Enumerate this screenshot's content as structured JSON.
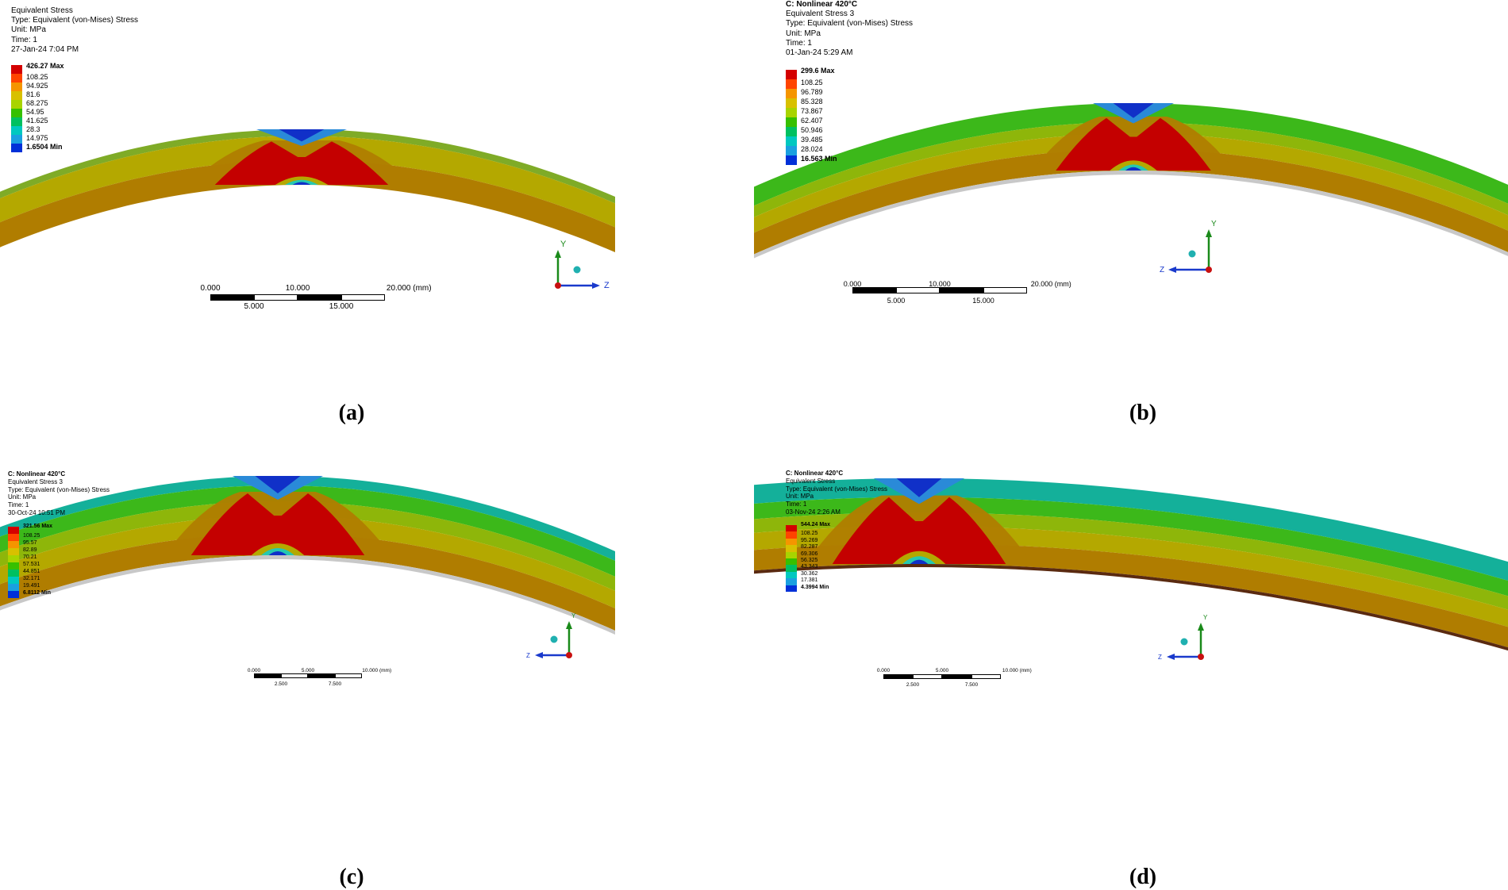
{
  "panels": [
    {
      "id": "a",
      "caption": "(a)",
      "info_lines": [
        {
          "text": "Equivalent Stress",
          "bold": false
        },
        {
          "text": "Type: Equivalent (von-Mises) Stress",
          "bold": false
        },
        {
          "text": "Unit: MPa",
          "bold": false
        },
        {
          "text": "Time: 1",
          "bold": false
        },
        {
          "text": "27-Jan-24 7:04 PM",
          "bold": false
        }
      ],
      "legend": [
        "426.27 Max",
        "108.25",
        "94.925",
        "81.6",
        "68.275",
        "54.95",
        "41.625",
        "28.3",
        "14.975",
        "1.6504 Min"
      ],
      "scale_top": [
        "0.000",
        "10.000",
        "20.000 (mm)"
      ],
      "scale_bottom": [
        "5.000",
        "15.000"
      ],
      "axes": {
        "vertical": "Y",
        "horizontal": "Z"
      }
    },
    {
      "id": "b",
      "caption": "(b)",
      "info_lines": [
        {
          "text": "C: Nonlinear 420°C",
          "bold": true
        },
        {
          "text": "Equivalent Stress 3",
          "bold": false
        },
        {
          "text": "Type: Equivalent (von-Mises) Stress",
          "bold": false
        },
        {
          "text": "Unit: MPa",
          "bold": false
        },
        {
          "text": "Time: 1",
          "bold": false
        },
        {
          "text": "01-Jan-24 5:29 AM",
          "bold": false
        }
      ],
      "legend": [
        "299.6 Max",
        "108.25",
        "96.789",
        "85.328",
        "73.867",
        "62.407",
        "50.946",
        "39.485",
        "28.024",
        "16.563 Min"
      ],
      "scale_top": [
        "0.000",
        "10.000",
        "20.000 (mm)"
      ],
      "scale_bottom": [
        "5.000",
        "15.000"
      ],
      "axes": {
        "vertical": "Y",
        "horizontal": "Z"
      }
    },
    {
      "id": "c",
      "caption": "(c)",
      "info_lines": [
        {
          "text": "C: Nonlinear 420°C",
          "bold": true
        },
        {
          "text": "Equivalent Stress 3",
          "bold": false
        },
        {
          "text": "Type: Equivalent (von-Mises) Stress",
          "bold": false
        },
        {
          "text": "Unit: MPa",
          "bold": false
        },
        {
          "text": "Time: 1",
          "bold": false
        },
        {
          "text": "30-Oct-24 10:51 PM",
          "bold": false
        }
      ],
      "legend": [
        "321.56 Max",
        "108.25",
        "95.57",
        "82.89",
        "70.21",
        "57.531",
        "44.851",
        "32.171",
        "19.491",
        "6.8112 Min"
      ],
      "scale_top": [
        "0.000",
        "5.000",
        "10.000 (mm)"
      ],
      "scale_bottom": [
        "2.500",
        "7.500"
      ],
      "axes": {
        "vertical": "Y",
        "horizontal": "Z"
      }
    },
    {
      "id": "d",
      "caption": "(d)",
      "info_lines": [
        {
          "text": "C: Nonlinear 420°C",
          "bold": true
        },
        {
          "text": "Equivalent Stress",
          "bold": false
        },
        {
          "text": "Type: Equivalent (von-Mises) Stress",
          "bold": false
        },
        {
          "text": "Unit: MPa",
          "bold": false
        },
        {
          "text": "Time: 1",
          "bold": false
        },
        {
          "text": "03-Nov-24 2:26 AM",
          "bold": false
        }
      ],
      "legend": [
        "544.24 Max",
        "108.25",
        "95.269",
        "82.287",
        "69.306",
        "56.325",
        "43.343",
        "30.362",
        "17.381",
        "4.3994 Min"
      ],
      "scale_top": [
        "0.000",
        "5.000",
        "10.000 (mm)"
      ],
      "scale_bottom": [
        "2.500",
        "7.500"
      ],
      "axes": {
        "vertical": "Y",
        "horizontal": "Z"
      }
    }
  ],
  "colors": {
    "legend_scale": [
      "#d40000",
      "#ff4400",
      "#f59500",
      "#d8c000",
      "#a8d400",
      "#36c000",
      "#00c060",
      "#00c8c0",
      "#1aa0e0",
      "#0030d8"
    ],
    "shell_outer_a": "#7fab27",
    "shell_olive": "#b4a800",
    "shell_orange": "#b07d00",
    "shell_green": "#3cb81a",
    "shell_teal": "#14b09a",
    "shell_yellowgreen": "#8eb60a",
    "hot": "#c40000",
    "cold": "#1030c8",
    "liner_gray": "#c8c8c8",
    "liner_dark": "#5a2a10",
    "axis_y": "#1a8a1a",
    "axis_z": "#1a3acc",
    "axis_origin": "#c81010",
    "axis_ball": "#20b0b0"
  }
}
